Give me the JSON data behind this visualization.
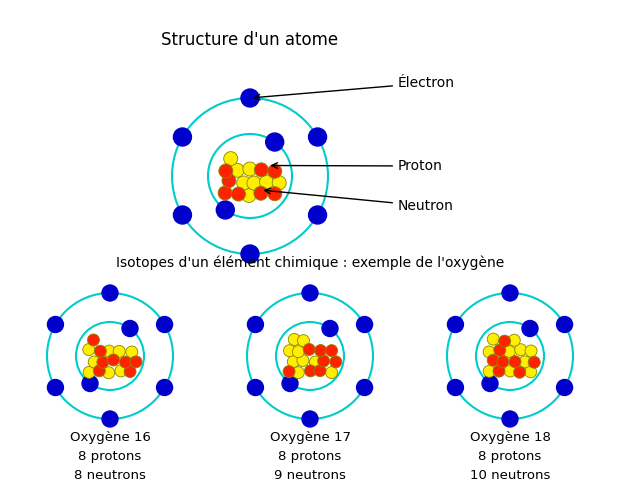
{
  "title_top": "Structure d'un atome",
  "title_bottom": "Isotopes d'un élément chimique : exemple de l'oxygène",
  "bg_color": "#ffffff",
  "orbit_color": "#00cccc",
  "electron_color": "#0000cc",
  "proton_color": "#ff2200",
  "neutron_color": "#ffee00",
  "nucleus_outline": "#888800",
  "labels": {
    "electron": "Électron",
    "proton": "Proton",
    "neutron": "Neutron"
  },
  "isotopes": [
    {
      "name": "Oxygène 16",
      "protons": 8,
      "neutrons": 8
    },
    {
      "name": "Oxygène 17",
      "protons": 8,
      "neutrons": 9
    },
    {
      "name": "Oxygène 18",
      "protons": 8,
      "neutrons": 10
    }
  ]
}
